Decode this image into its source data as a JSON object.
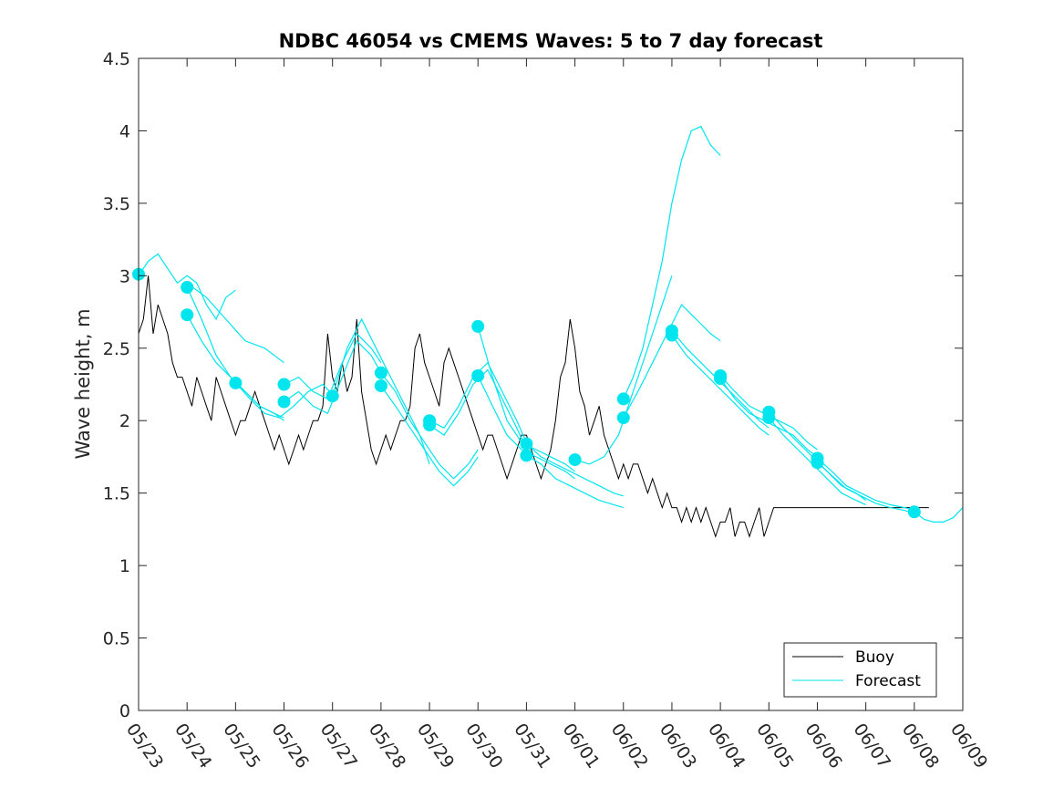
{
  "chart_data": {
    "type": "line",
    "title": "NDBC 46054 vs CMEMS Waves: 5 to 7 day forecast",
    "xlabel": "",
    "ylabel": "Wave height, m",
    "ylim": [
      0,
      4.5
    ],
    "xlim": [
      0,
      17
    ],
    "x_tick_labels": [
      "05/23",
      "05/24",
      "05/25",
      "05/26",
      "05/27",
      "05/28",
      "05/29",
      "05/30",
      "05/31",
      "06/01",
      "06/02",
      "06/03",
      "06/04",
      "06/05",
      "06/06",
      "06/07",
      "06/08",
      "06/09"
    ],
    "y_tick_labels": [
      "0",
      "0.5",
      "1",
      "1.5",
      "2",
      "2.5",
      "3",
      "3.5",
      "4",
      "4.5"
    ],
    "grid": false,
    "legend": {
      "placement": "bottom-right",
      "entries": [
        "Buoy",
        "Forecast"
      ]
    },
    "colors": {
      "buoy": "#000000",
      "forecast": "#00e5ee"
    },
    "series": [
      {
        "name": "Buoy",
        "x": [
          0,
          0.1,
          0.2,
          0.3,
          0.4,
          0.5,
          0.6,
          0.7,
          0.8,
          0.9,
          1.0,
          1.1,
          1.2,
          1.3,
          1.4,
          1.5,
          1.6,
          1.7,
          1.8,
          1.9,
          2.0,
          2.1,
          2.2,
          2.3,
          2.4,
          2.5,
          2.6,
          2.7,
          2.8,
          2.9,
          3.0,
          3.1,
          3.2,
          3.3,
          3.4,
          3.5,
          3.6,
          3.7,
          3.8,
          3.9,
          4.0,
          4.1,
          4.2,
          4.3,
          4.4,
          4.5,
          4.6,
          4.7,
          4.8,
          4.9,
          5.0,
          5.1,
          5.2,
          5.3,
          5.4,
          5.5,
          5.6,
          5.7,
          5.8,
          5.9,
          6.0,
          6.1,
          6.2,
          6.3,
          6.4,
          6.5,
          6.6,
          6.7,
          6.8,
          6.9,
          7.0,
          7.1,
          7.2,
          7.3,
          7.4,
          7.5,
          7.6,
          7.7,
          7.8,
          7.9,
          8.0,
          8.1,
          8.2,
          8.3,
          8.4,
          8.5,
          8.6,
          8.7,
          8.8,
          8.9,
          9.0,
          9.1,
          9.2,
          9.3,
          9.4,
          9.5,
          9.6,
          9.7,
          9.8,
          9.9,
          10.0,
          10.1,
          10.2,
          10.3,
          10.4,
          10.5,
          10.6,
          10.7,
          10.8,
          10.9,
          11.0,
          11.1,
          11.2,
          11.3,
          11.4,
          11.5,
          11.6,
          11.7,
          11.8,
          11.9,
          12.0,
          12.1,
          12.2,
          12.3,
          12.4,
          12.5,
          12.6,
          12.7,
          12.8,
          12.9,
          13.0,
          13.1,
          13.2,
          13.3,
          13.4,
          13.5,
          13.6,
          13.7,
          13.8,
          13.9,
          14.0,
          14.1,
          14.2,
          14.3,
          14.4,
          14.5,
          14.6,
          14.7,
          14.8,
          14.9,
          15.0,
          15.1,
          15.2,
          15.3,
          15.4,
          15.5,
          15.6,
          15.7,
          15.8,
          15.9,
          16.0,
          16.1,
          16.2,
          16.3
        ],
        "y": [
          2.6,
          2.7,
          3.0,
          2.6,
          2.8,
          2.7,
          2.6,
          2.4,
          2.3,
          2.3,
          2.2,
          2.1,
          2.3,
          2.2,
          2.1,
          2.0,
          2.3,
          2.2,
          2.1,
          2.0,
          1.9,
          2.0,
          2.0,
          2.1,
          2.2,
          2.1,
          2.0,
          1.9,
          1.8,
          1.9,
          1.8,
          1.7,
          1.8,
          1.9,
          1.8,
          1.9,
          2.0,
          2.0,
          2.1,
          2.6,
          2.3,
          2.2,
          2.4,
          2.2,
          2.3,
          2.7,
          2.2,
          2.0,
          1.8,
          1.7,
          1.8,
          1.9,
          1.8,
          1.9,
          2.0,
          2.0,
          2.1,
          2.5,
          2.6,
          2.4,
          2.3,
          2.2,
          2.1,
          2.4,
          2.5,
          2.4,
          2.3,
          2.2,
          2.1,
          2.0,
          1.9,
          1.8,
          1.9,
          1.9,
          1.8,
          1.7,
          1.6,
          1.7,
          1.8,
          1.9,
          1.9,
          1.8,
          1.7,
          1.6,
          1.7,
          1.8,
          2.0,
          2.3,
          2.4,
          2.7,
          2.5,
          2.2,
          2.1,
          1.9,
          2.0,
          2.1,
          1.9,
          1.8,
          1.7,
          1.6,
          1.7,
          1.6,
          1.7,
          1.7,
          1.6,
          1.5,
          1.6,
          1.5,
          1.4,
          1.5,
          1.4,
          1.4,
          1.3,
          1.4,
          1.3,
          1.4,
          1.3,
          1.4,
          1.3,
          1.2,
          1.3,
          1.3,
          1.4,
          1.2,
          1.3,
          1.3,
          1.2,
          1.3,
          1.4,
          1.2,
          1.3,
          1.4,
          1.4,
          1.4,
          1.4,
          1.4,
          1.4,
          1.4,
          1.4,
          1.4,
          1.4,
          1.4,
          1.4,
          1.4,
          1.4,
          1.4,
          1.4,
          1.4,
          1.4,
          1.4,
          1.4,
          1.4,
          1.4,
          1.4,
          1.4,
          1.4,
          1.4,
          1.4,
          1.4,
          1.4,
          1.4,
          1.4,
          1.4,
          1.4
        ]
      },
      {
        "name": "Forecast",
        "runs": [
          {
            "x": [
              0.0,
              0.2,
              0.4,
              0.6,
              0.8,
              1.0,
              1.2,
              1.4,
              1.6,
              1.8,
              2.0
            ],
            "y": [
              3.0,
              3.1,
              3.15,
              3.05,
              2.95,
              3.0,
              2.95,
              2.8,
              2.7,
              2.85,
              2.9
            ]
          },
          {
            "x": [
              1.0,
              1.3,
              1.6,
              1.9,
              2.2,
              2.5,
              2.8,
              3.0
            ],
            "y": [
              2.92,
              2.7,
              2.45,
              2.3,
              2.2,
              2.1,
              2.05,
              2.02
            ]
          },
          {
            "x": [
              1.0,
              1.3,
              1.6,
              1.9,
              2.2,
              2.5,
              2.8,
              3.0
            ],
            "y": [
              2.73,
              2.55,
              2.4,
              2.3,
              2.2,
              2.1,
              2.05,
              2.0
            ]
          },
          {
            "x": [
              1.0,
              1.4,
              1.8,
              2.2,
              2.6,
              3.0
            ],
            "y": [
              2.95,
              2.85,
              2.7,
              2.55,
              2.5,
              2.4
            ]
          },
          {
            "x": [
              2.0,
              2.3,
              2.6,
              2.9,
              3.2,
              3.5,
              3.8,
              4.0
            ],
            "y": [
              2.26,
              2.15,
              2.05,
              2.02,
              2.1,
              2.2,
              2.25,
              2.18
            ]
          },
          {
            "x": [
              3.0,
              3.3,
              3.6,
              3.9,
              4.2,
              4.5,
              4.8,
              5.0
            ],
            "y": [
              2.25,
              2.3,
              2.2,
              2.15,
              2.4,
              2.6,
              2.5,
              2.4
            ]
          },
          {
            "x": [
              3.0,
              3.3,
              3.6,
              3.9,
              4.2,
              4.5,
              4.8,
              5.0
            ],
            "y": [
              2.13,
              2.2,
              2.1,
              2.05,
              2.3,
              2.55,
              2.45,
              2.33
            ]
          },
          {
            "x": [
              4.0,
              4.3,
              4.6,
              4.9,
              5.2,
              5.5,
              5.8,
              6.0
            ],
            "y": [
              2.17,
              2.5,
              2.7,
              2.5,
              2.3,
              2.1,
              1.9,
              1.7
            ]
          },
          {
            "x": [
              5.0,
              5.3,
              5.6,
              5.9,
              6.2,
              6.5,
              6.8,
              7.0
            ],
            "y": [
              2.33,
              2.2,
              2.0,
              1.85,
              1.7,
              1.6,
              1.7,
              1.8
            ]
          },
          {
            "x": [
              5.0,
              5.3,
              5.6,
              5.9,
              6.2,
              6.5,
              6.8,
              7.0
            ],
            "y": [
              2.24,
              2.1,
              1.95,
              1.8,
              1.65,
              1.55,
              1.65,
              1.75
            ]
          },
          {
            "x": [
              6.0,
              6.3,
              6.6,
              6.9,
              7.2,
              7.5,
              7.8,
              8.0
            ],
            "y": [
              2.0,
              1.95,
              2.1,
              2.3,
              2.4,
              2.2,
              2.0,
              1.85
            ]
          },
          {
            "x": [
              6.0,
              6.3,
              6.6,
              6.9,
              7.2,
              7.5,
              7.8,
              8.0
            ],
            "y": [
              1.97,
              1.9,
              2.05,
              2.25,
              2.35,
              2.15,
              1.95,
              1.8
            ]
          },
          {
            "x": [
              7.0,
              7.3,
              7.6,
              7.9,
              8.2,
              8.5,
              8.8,
              9.0
            ],
            "y": [
              2.65,
              2.3,
              2.0,
              1.85,
              1.8,
              1.75,
              1.7,
              1.65
            ]
          },
          {
            "x": [
              7.0,
              7.3,
              7.6,
              7.9,
              8.2,
              8.5,
              8.8,
              9.0
            ],
            "y": [
              2.31,
              2.1,
              1.9,
              1.8,
              1.75,
              1.7,
              1.65,
              1.6
            ]
          },
          {
            "x": [
              8.0,
              8.3,
              8.6,
              8.9,
              9.2,
              9.5,
              9.8,
              10.0
            ],
            "y": [
              1.84,
              1.75,
              1.7,
              1.65,
              1.6,
              1.55,
              1.5,
              1.48
            ]
          },
          {
            "x": [
              8.0,
              8.3,
              8.6,
              8.9,
              9.2,
              9.5,
              9.8,
              10.0
            ],
            "y": [
              1.76,
              1.7,
              1.6,
              1.55,
              1.5,
              1.45,
              1.42,
              1.4
            ]
          },
          {
            "x": [
              9.0,
              9.3,
              9.6,
              9.9,
              10.2,
              10.5,
              10.8,
              11.0
            ],
            "y": [
              1.73,
              1.7,
              1.75,
              1.9,
              2.2,
              2.5,
              2.8,
              3.0
            ]
          },
          {
            "x": [
              10.0,
              10.2,
              10.4,
              10.6,
              10.8,
              11.0,
              11.2,
              11.4,
              11.6,
              11.8,
              12.0
            ],
            "y": [
              2.15,
              2.3,
              2.5,
              2.8,
              3.1,
              3.5,
              3.8,
              4.0,
              4.03,
              3.9,
              3.83
            ]
          },
          {
            "x": [
              10.0,
              10.3,
              10.6,
              10.9,
              11.2,
              11.5,
              11.8,
              12.0
            ],
            "y": [
              2.02,
              2.2,
              2.4,
              2.6,
              2.8,
              2.7,
              2.6,
              2.55
            ]
          },
          {
            "x": [
              11.0,
              11.3,
              11.6,
              11.9,
              12.2,
              12.5,
              12.8,
              13.0
            ],
            "y": [
              2.62,
              2.5,
              2.4,
              2.3,
              2.2,
              2.1,
              2.0,
              1.95
            ]
          },
          {
            "x": [
              11.0,
              11.3,
              11.6,
              11.9,
              12.2,
              12.5,
              12.8,
              13.0
            ],
            "y": [
              2.59,
              2.45,
              2.35,
              2.25,
              2.15,
              2.05,
              1.95,
              1.9
            ]
          },
          {
            "x": [
              12.0,
              12.3,
              12.6,
              12.9,
              13.2,
              13.5,
              13.8,
              14.0
            ],
            "y": [
              2.31,
              2.2,
              2.1,
              2.05,
              2.0,
              1.95,
              1.85,
              1.8
            ]
          },
          {
            "x": [
              12.0,
              12.3,
              12.6,
              12.9,
              13.2,
              13.5,
              13.8,
              14.0
            ],
            "y": [
              2.29,
              2.15,
              2.05,
              2.0,
              1.95,
              1.9,
              1.8,
              1.75
            ]
          },
          {
            "x": [
              13.0,
              13.3,
              13.6,
              13.9,
              14.2,
              14.5,
              14.8,
              15.0
            ],
            "y": [
              2.06,
              1.95,
              1.85,
              1.75,
              1.65,
              1.55,
              1.5,
              1.45
            ]
          },
          {
            "x": [
              13.0,
              13.3,
              13.6,
              13.9,
              14.2,
              14.5,
              14.8,
              15.0
            ],
            "y": [
              2.02,
              1.9,
              1.8,
              1.7,
              1.6,
              1.5,
              1.45,
              1.42
            ]
          },
          {
            "x": [
              14.0,
              14.3,
              14.6,
              14.9,
              15.2,
              15.5,
              15.8,
              16.0
            ],
            "y": [
              1.74,
              1.65,
              1.55,
              1.5,
              1.45,
              1.42,
              1.4,
              1.38
            ]
          },
          {
            "x": [
              14.0,
              14.3,
              14.6,
              14.9,
              15.2,
              15.5,
              15.8,
              16.0
            ],
            "y": [
              1.71,
              1.62,
              1.53,
              1.48,
              1.43,
              1.4,
              1.38,
              1.36
            ]
          },
          {
            "x": [
              16.0,
              16.2,
              16.4,
              16.6,
              16.8,
              17.0
            ],
            "y": [
              1.37,
              1.32,
              1.3,
              1.3,
              1.33,
              1.4
            ]
          }
        ],
        "markers": [
          {
            "x": 0.0,
            "y": 3.01
          },
          {
            "x": 1.0,
            "y": 2.92
          },
          {
            "x": 1.0,
            "y": 2.73
          },
          {
            "x": 2.0,
            "y": 2.26
          },
          {
            "x": 3.0,
            "y": 2.25
          },
          {
            "x": 3.0,
            "y": 2.13
          },
          {
            "x": 4.0,
            "y": 2.17
          },
          {
            "x": 5.0,
            "y": 2.33
          },
          {
            "x": 5.0,
            "y": 2.24
          },
          {
            "x": 6.0,
            "y": 2.0
          },
          {
            "x": 6.0,
            "y": 1.97
          },
          {
            "x": 7.0,
            "y": 2.65
          },
          {
            "x": 7.0,
            "y": 2.31
          },
          {
            "x": 8.0,
            "y": 1.84
          },
          {
            "x": 8.0,
            "y": 1.76
          },
          {
            "x": 9.0,
            "y": 1.73
          },
          {
            "x": 10.0,
            "y": 2.15
          },
          {
            "x": 10.0,
            "y": 2.02
          },
          {
            "x": 11.0,
            "y": 2.62
          },
          {
            "x": 11.0,
            "y": 2.59
          },
          {
            "x": 12.0,
            "y": 2.31
          },
          {
            "x": 12.0,
            "y": 2.29
          },
          {
            "x": 13.0,
            "y": 2.06
          },
          {
            "x": 13.0,
            "y": 2.02
          },
          {
            "x": 14.0,
            "y": 1.74
          },
          {
            "x": 14.0,
            "y": 1.71
          },
          {
            "x": 16.0,
            "y": 1.37
          }
        ]
      }
    ]
  }
}
